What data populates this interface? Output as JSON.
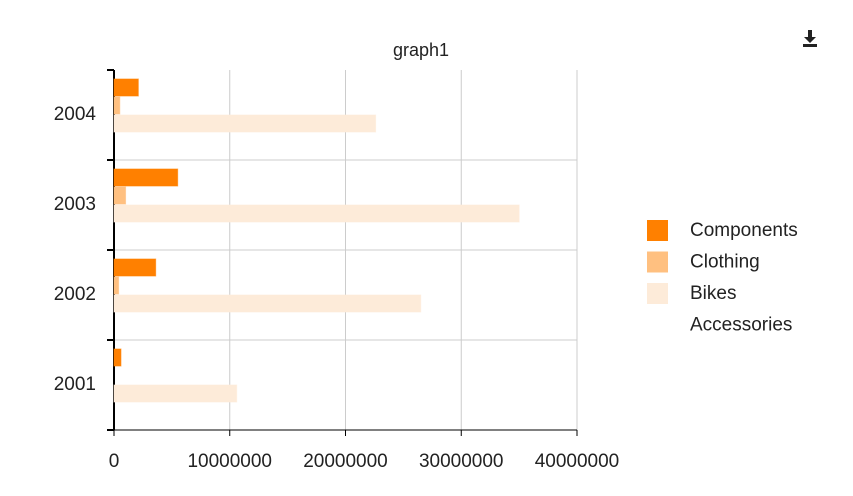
{
  "chart_data": {
    "type": "bar",
    "orientation": "horizontal",
    "title": "graph1",
    "categories": [
      "2001",
      "2002",
      "2003",
      "2004"
    ],
    "series": [
      {
        "name": "Components",
        "color": "#ff8000",
        "values": [
          600000,
          3600000,
          5500000,
          2100000
        ]
      },
      {
        "name": "Clothing",
        "color": "#ffc080",
        "values": [
          0,
          400000,
          1000000,
          500000
        ]
      },
      {
        "name": "Bikes",
        "color": "#fdebd9",
        "values": [
          10600000,
          26500000,
          35000000,
          22600000
        ]
      },
      {
        "name": "Accessories",
        "color": "#ffffff",
        "values": [
          0,
          0,
          0,
          0
        ]
      }
    ],
    "xlim": [
      0,
      40000000
    ],
    "xticks": [
      0,
      10000000,
      20000000,
      30000000,
      40000000
    ],
    "grid": true
  }
}
